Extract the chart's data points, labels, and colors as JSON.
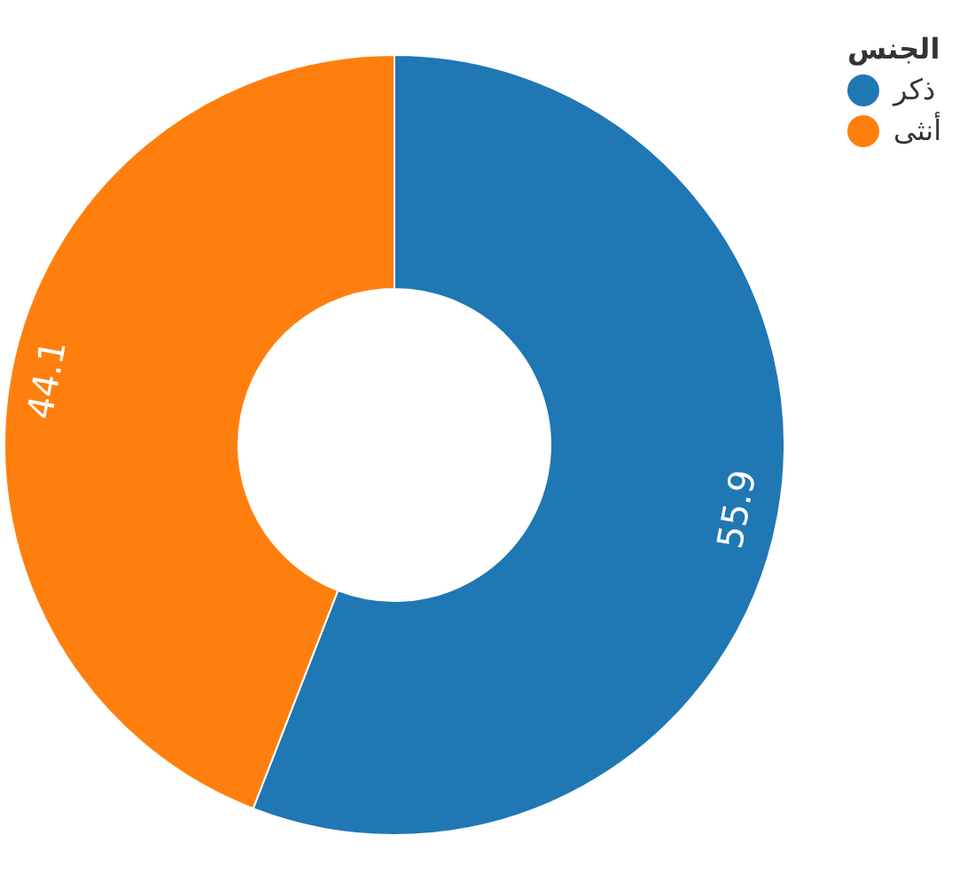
{
  "chart_data": {
    "type": "donut",
    "legend_title": "الجنس",
    "categories": [
      "ذكر",
      "أنثى"
    ],
    "values": [
      55.9,
      44.1
    ],
    "colors": [
      "#1f77b4",
      "#ff7f0e"
    ],
    "data_labels": true,
    "legend": "top right"
  }
}
